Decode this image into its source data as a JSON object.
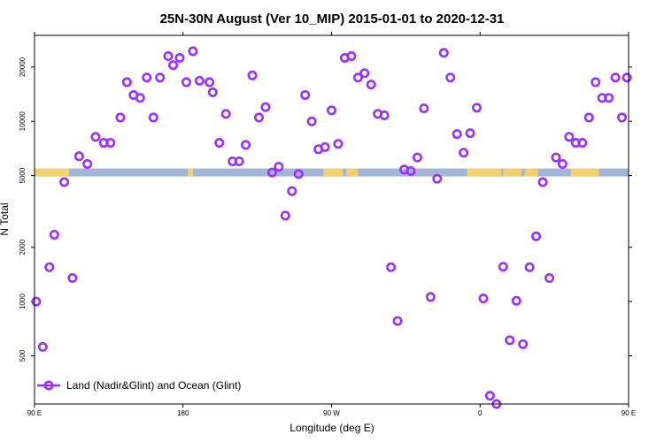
{
  "chart_data": {
    "type": "scatter",
    "title": "25N-30N August (Ver 10_MIP)   2015-01-01 to 2020-12-31",
    "xlabel": "Longitude (deg E)",
    "ylabel": "N Total",
    "xlim": [
      90,
      450
    ],
    "y_scale": "log",
    "ylim": [
      270,
      30000
    ],
    "x_ticks": [
      {
        "value": 90,
        "label": "90 E"
      },
      {
        "value": 180,
        "label": "180"
      },
      {
        "value": 270,
        "label": "90 W"
      },
      {
        "value": 360,
        "label": "0"
      },
      {
        "value": 450,
        "label": "90 E"
      }
    ],
    "x_ticks_top": [
      90,
      180,
      270,
      360,
      450
    ],
    "y_ticks": [
      {
        "value": 500,
        "label": "500"
      },
      {
        "value": 1000,
        "label": "1000"
      },
      {
        "value": 2000,
        "label": "2000"
      },
      {
        "value": 5000,
        "label": "5000"
      },
      {
        "value": 10000,
        "label": "10000"
      },
      {
        "value": 20000,
        "label": "20000"
      }
    ],
    "series": [
      {
        "name": "Land (Nadir&Glint) and Ocean (Glint)",
        "color": "#9b30ff",
        "marker": "open-circle",
        "x": [
          91,
          95,
          99,
          102,
          108,
          113,
          117,
          122,
          127,
          132,
          136,
          142,
          146,
          150,
          154,
          158,
          162,
          166,
          171,
          174,
          178,
          182,
          186,
          190,
          196,
          198,
          202,
          206,
          210,
          214,
          218,
          222,
          226,
          230,
          234,
          238,
          242,
          246,
          250,
          254,
          258,
          262,
          266,
          270,
          274,
          278,
          282,
          286,
          290,
          294,
          298,
          302,
          306,
          310,
          314,
          318,
          322,
          326,
          330,
          334,
          338,
          342,
          346,
          350,
          354,
          358,
          362,
          366,
          370,
          374,
          378,
          382,
          386,
          390,
          394,
          398,
          402,
          406,
          410,
          414,
          418,
          422,
          426,
          430,
          434,
          438,
          442,
          446,
          449
        ],
        "y": [
          1000,
          560,
          1550,
          2350,
          4600,
          1350,
          6400,
          5800,
          8200,
          7600,
          7600,
          10500,
          16500,
          14000,
          13500,
          17500,
          10500,
          17500,
          23000,
          20500,
          22500,
          16500,
          24500,
          16800,
          16500,
          14500,
          7600,
          11000,
          6000,
          6000,
          7400,
          18000,
          10500,
          12000,
          5200,
          5600,
          3000,
          4100,
          5100,
          14000,
          10000,
          7000,
          7200,
          11500,
          7500,
          22500,
          23000,
          17500,
          18500,
          16000,
          11000,
          10800,
          1550,
          780,
          5400,
          5300,
          6300,
          11800,
          1060,
          4800,
          24000,
          17500,
          8500,
          6700,
          8600,
          11900,
          1040,
          300,
          270,
          1560,
          610,
          1010,
          580,
          1550,
          2300,
          4600,
          1350,
          6300,
          5800,
          8200,
          7600,
          7600,
          10500,
          16500,
          13500,
          13500,
          17500,
          10500,
          17500
        ]
      }
    ],
    "band": {
      "label_value": 5000,
      "color_ocean": "#a2b5d6",
      "color_land": "#f2d06b"
    },
    "legend": {
      "position": "bottom-left",
      "label": "Land (Nadir&Glint) and Ocean (Glint)"
    }
  }
}
